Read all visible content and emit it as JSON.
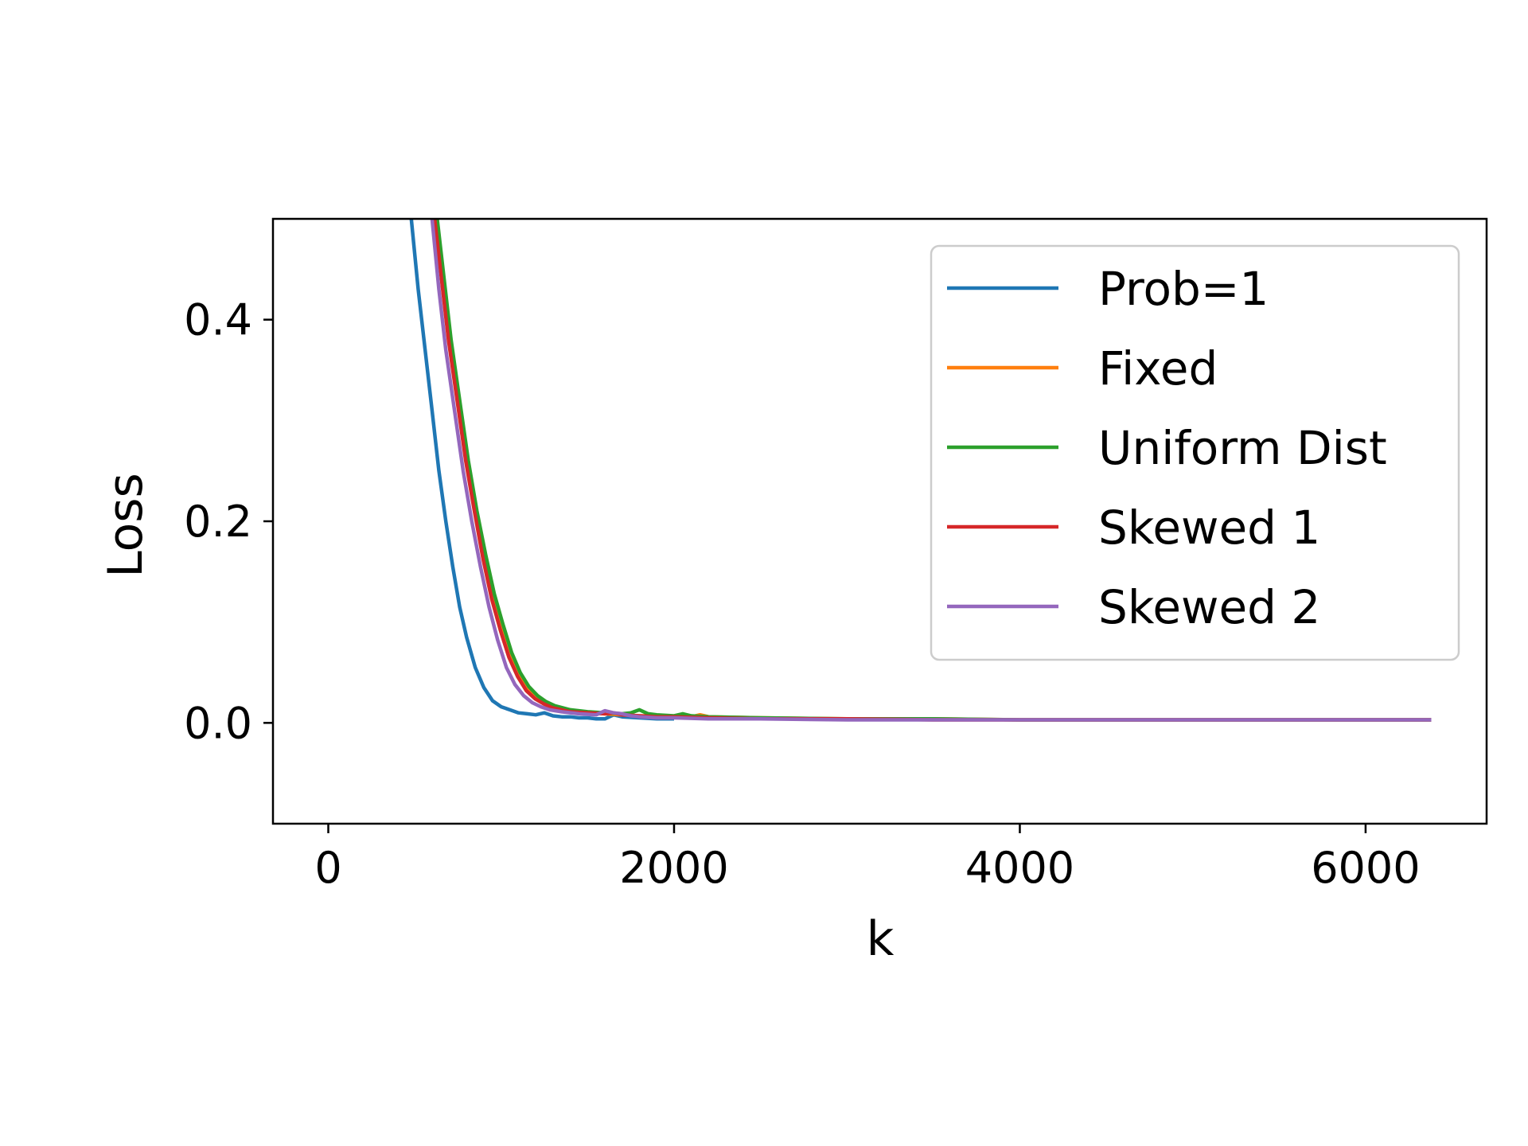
{
  "chart_data": {
    "type": "line",
    "xlabel": "k",
    "ylabel": "Loss",
    "xlim": [
      -320,
      6700
    ],
    "ylim": [
      -0.1,
      0.5
    ],
    "xticks": [
      0,
      2000,
      4000,
      6000
    ],
    "xtick_labels": [
      "0",
      "2000",
      "4000",
      "6000"
    ],
    "yticks": [
      0.0,
      0.2,
      0.4
    ],
    "ytick_labels": [
      "0.0",
      "0.2",
      "0.4"
    ],
    "grid": false,
    "legend_position": "top-right",
    "series": [
      {
        "name": "Prob=1",
        "color": "#1f77b4",
        "x": [
          480,
          520,
          560,
          600,
          640,
          680,
          720,
          760,
          800,
          850,
          900,
          950,
          1000,
          1050,
          1100,
          1150,
          1200,
          1250,
          1300,
          1350,
          1400,
          1450,
          1500,
          1550,
          1600,
          1650,
          1700,
          1800,
          1900,
          2000
        ],
        "y": [
          0.5,
          0.43,
          0.37,
          0.31,
          0.25,
          0.2,
          0.155,
          0.115,
          0.085,
          0.055,
          0.035,
          0.022,
          0.016,
          0.013,
          0.01,
          0.009,
          0.008,
          0.01,
          0.007,
          0.006,
          0.006,
          0.005,
          0.005,
          0.004,
          0.004,
          0.008,
          0.006,
          0.005,
          0.004,
          0.004
        ]
      },
      {
        "name": "Fixed",
        "color": "#ff7f0e",
        "x": [
          620,
          660,
          700,
          750,
          800,
          850,
          900,
          950,
          1000,
          1050,
          1100,
          1150,
          1200,
          1250,
          1300,
          1400,
          1500,
          1600,
          1700,
          1800,
          1900,
          2000,
          2100,
          2150,
          2200,
          2500,
          3000,
          3500,
          4000,
          4500,
          5000,
          5500,
          6000,
          6380
        ],
        "y": [
          0.5,
          0.44,
          0.38,
          0.32,
          0.26,
          0.21,
          0.165,
          0.125,
          0.095,
          0.068,
          0.048,
          0.034,
          0.025,
          0.02,
          0.016,
          0.012,
          0.01,
          0.009,
          0.008,
          0.007,
          0.007,
          0.006,
          0.006,
          0.008,
          0.006,
          0.005,
          0.004,
          0.004,
          0.003,
          0.003,
          0.003,
          0.003,
          0.003,
          0.003
        ]
      },
      {
        "name": "Uniform Dist",
        "color": "#2ca02c",
        "x": [
          630,
          670,
          710,
          760,
          810,
          860,
          910,
          960,
          1010,
          1060,
          1110,
          1160,
          1210,
          1260,
          1310,
          1400,
          1500,
          1600,
          1700,
          1750,
          1800,
          1850,
          1900,
          2000,
          2050,
          2100,
          2200,
          2500,
          3000,
          3500,
          4000,
          4500,
          5000,
          5500,
          6000,
          6380
        ],
        "y": [
          0.5,
          0.44,
          0.38,
          0.32,
          0.26,
          0.21,
          0.167,
          0.128,
          0.098,
          0.07,
          0.05,
          0.036,
          0.027,
          0.021,
          0.017,
          0.013,
          0.011,
          0.01,
          0.009,
          0.01,
          0.013,
          0.009,
          0.008,
          0.007,
          0.009,
          0.007,
          0.006,
          0.005,
          0.004,
          0.004,
          0.003,
          0.003,
          0.003,
          0.003,
          0.003,
          0.003
        ]
      },
      {
        "name": "Skewed 1",
        "color": "#d62728",
        "x": [
          615,
          655,
          695,
          745,
          795,
          845,
          895,
          945,
          995,
          1045,
          1095,
          1145,
          1195,
          1245,
          1295,
          1400,
          1500,
          1600,
          1650,
          1700,
          1800,
          1900,
          2000,
          2200,
          2500,
          3000,
          3500,
          4000,
          4500,
          5000,
          5500,
          6000,
          6380
        ],
        "y": [
          0.5,
          0.44,
          0.38,
          0.32,
          0.26,
          0.21,
          0.163,
          0.123,
          0.092,
          0.065,
          0.046,
          0.032,
          0.024,
          0.019,
          0.015,
          0.011,
          0.01,
          0.009,
          0.01,
          0.008,
          0.007,
          0.006,
          0.006,
          0.005,
          0.004,
          0.004,
          0.003,
          0.003,
          0.003,
          0.003,
          0.003,
          0.003,
          0.003
        ]
      },
      {
        "name": "Skewed 2",
        "color": "#9467bd",
        "x": [
          600,
          640,
          680,
          730,
          780,
          830,
          880,
          930,
          980,
          1030,
          1080,
          1130,
          1180,
          1230,
          1280,
          1350,
          1450,
          1550,
          1600,
          1650,
          1700,
          1750,
          1800,
          1900,
          2000,
          2200,
          2500,
          3000,
          3500,
          4000,
          4500,
          5000,
          5500,
          6000,
          6380
        ],
        "y": [
          0.5,
          0.43,
          0.37,
          0.31,
          0.25,
          0.2,
          0.155,
          0.115,
          0.082,
          0.055,
          0.038,
          0.027,
          0.02,
          0.016,
          0.013,
          0.011,
          0.009,
          0.008,
          0.012,
          0.01,
          0.009,
          0.007,
          0.006,
          0.005,
          0.005,
          0.004,
          0.004,
          0.003,
          0.003,
          0.003,
          0.003,
          0.003,
          0.003,
          0.003,
          0.003
        ]
      }
    ]
  }
}
